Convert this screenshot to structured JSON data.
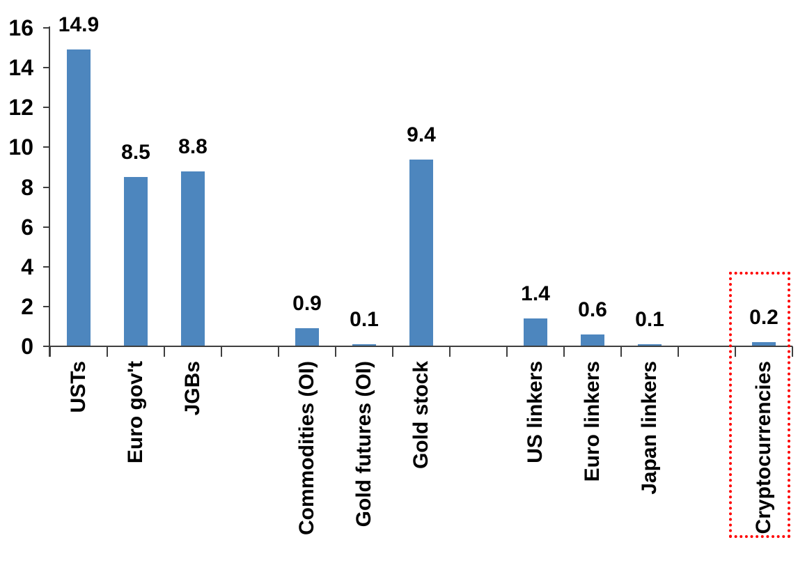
{
  "chart_data": {
    "type": "bar",
    "title": "",
    "xlabel": "",
    "ylabel": "",
    "categories": [
      "USTs",
      "Euro gov't",
      "JGBs",
      "Commodities (OI)",
      "Gold futures (OI)",
      "Gold stock",
      "US linkers",
      "Euro linkers",
      "Japan linkers",
      "Cryptocurrencies"
    ],
    "values": [
      14.9,
      8.5,
      8.8,
      0.9,
      0.1,
      9.4,
      1.4,
      0.6,
      0.1,
      0.2
    ],
    "data_labels": [
      "14.9",
      "8.5",
      "8.8",
      "0.9",
      "0.1",
      "9.4",
      "1.4",
      "0.6",
      "0.1",
      "0.2"
    ],
    "slot_index": [
      0,
      1,
      2,
      4,
      5,
      6,
      8,
      9,
      10,
      12
    ],
    "total_slots": 13,
    "ylim": [
      0,
      16
    ],
    "yticks": [
      0,
      2,
      4,
      6,
      8,
      10,
      12,
      14,
      16
    ],
    "grid": false,
    "legend": false,
    "category_label_rotation_deg": -90,
    "bar_color": "#4d86be",
    "axis_color": "#3f3f3f",
    "label_color": "#000000",
    "highlight": {
      "category": "Cryptocurrencies",
      "shape": "dotted-rectangle",
      "color": "#ff0000"
    }
  }
}
